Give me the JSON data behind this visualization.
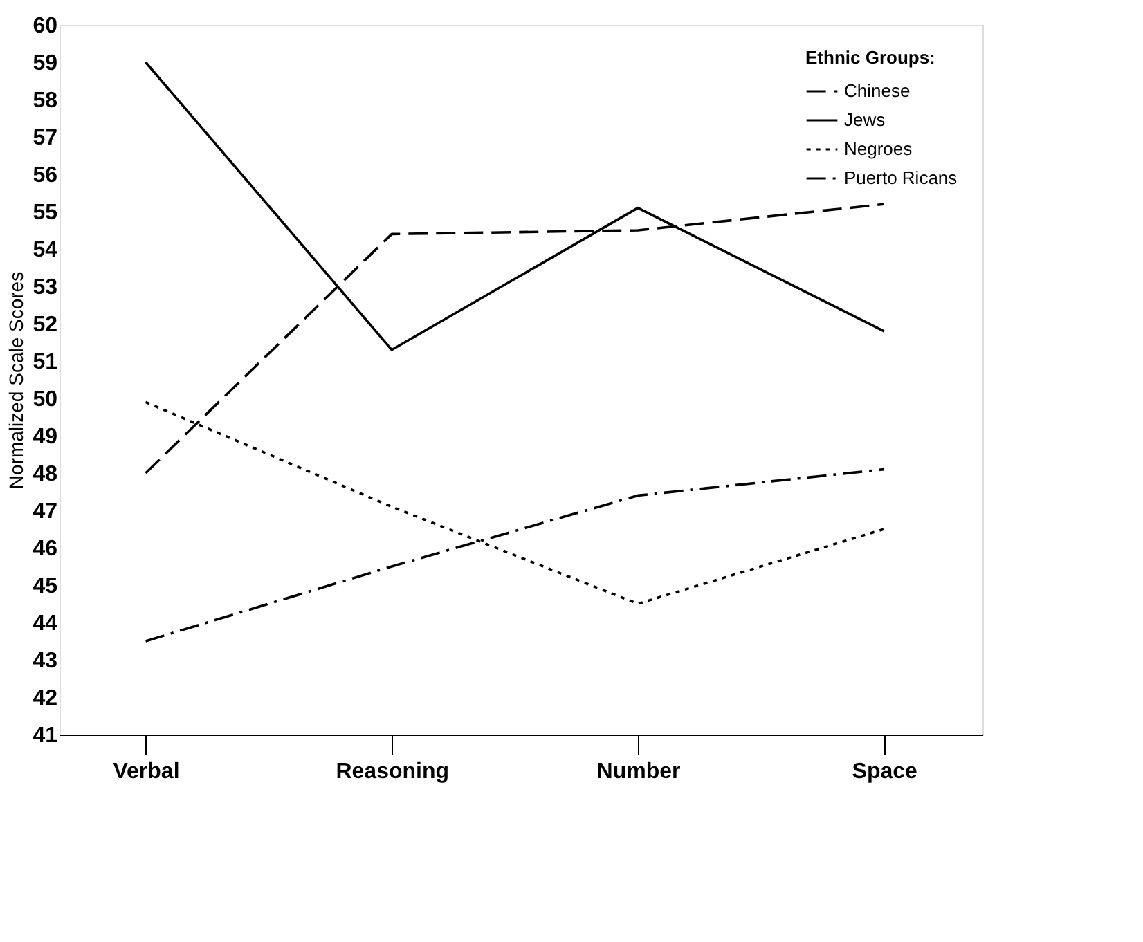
{
  "chart_data": {
    "type": "line",
    "ylabel": "Normalized Scale Scores",
    "legend_title": "Ethnic Groups:",
    "categories": [
      "Verbal",
      "Reasoning",
      "Number",
      "Space"
    ],
    "series": [
      {
        "name": "Chinese",
        "color": "#000000",
        "line_style": "dashed",
        "values": [
          48.0,
          54.4,
          54.5,
          55.2
        ]
      },
      {
        "name": "Jews",
        "color": "#000000",
        "line_style": "solid",
        "values": [
          59.0,
          51.3,
          55.1,
          51.8
        ]
      },
      {
        "name": "Negroes",
        "color": "#000000",
        "line_style": "dotted",
        "values": [
          49.9,
          47.1,
          44.5,
          46.5
        ]
      },
      {
        "name": "Puerto Ricans",
        "color": "#000000",
        "line_style": "dashdot",
        "values": [
          43.5,
          45.5,
          47.4,
          48.1
        ]
      }
    ],
    "ylim": [
      41,
      60
    ],
    "yticks": [
      41,
      42,
      43,
      44,
      45,
      46,
      47,
      48,
      49,
      50,
      51,
      52,
      53,
      54,
      55,
      56,
      57,
      58,
      59,
      60
    ],
    "grid": false,
    "legend": "top right",
    "marker": "none"
  }
}
